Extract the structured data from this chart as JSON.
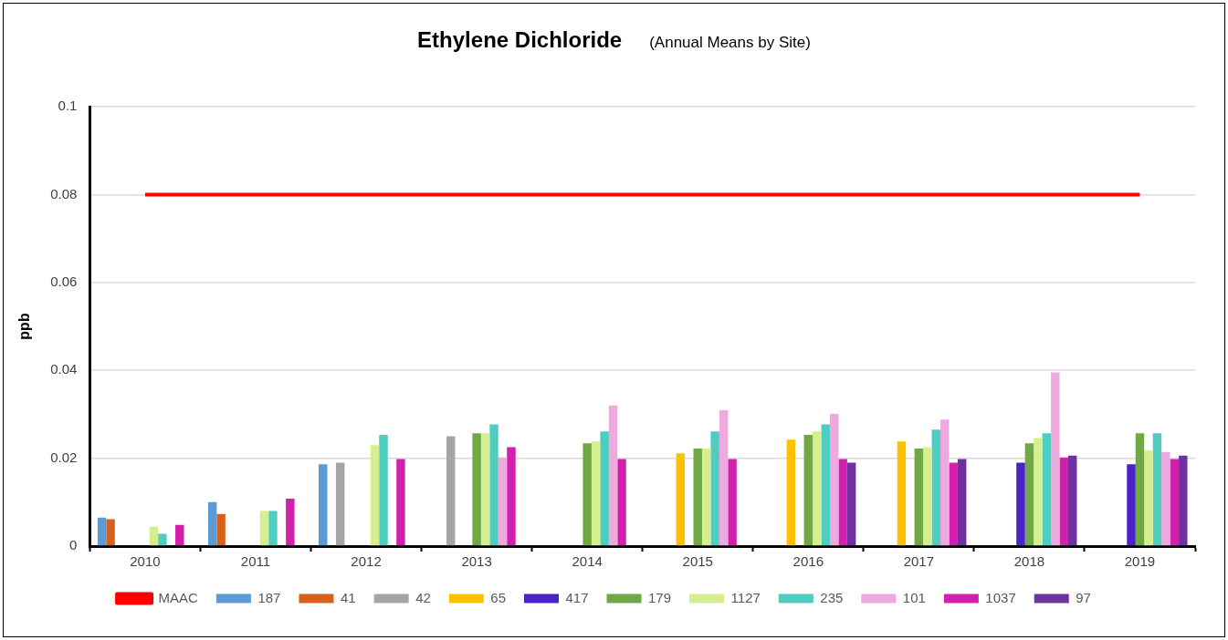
{
  "chart_data": {
    "type": "bar",
    "title": "Ethylene Dichloride",
    "subtitle": "(Annual Means by Site)",
    "ylabel": "ppb",
    "categories": [
      "2010",
      "2011",
      "2012",
      "2013",
      "2014",
      "2015",
      "2016",
      "2017",
      "2018",
      "2019"
    ],
    "series": [
      {
        "name": "187",
        "color": "#5b9bd5",
        "values": [
          0.0065,
          0.01,
          0.0186,
          null,
          null,
          null,
          null,
          null,
          null,
          null
        ]
      },
      {
        "name": "41",
        "color": "#d9601a",
        "values": [
          0.0061,
          0.0073,
          null,
          null,
          null,
          null,
          null,
          null,
          null,
          null
        ]
      },
      {
        "name": "42",
        "color": "#a5a5a5",
        "values": [
          null,
          null,
          0.019,
          0.025,
          null,
          null,
          null,
          null,
          null,
          null
        ]
      },
      {
        "name": "65",
        "color": "#ffc000",
        "values": [
          null,
          null,
          null,
          null,
          null,
          0.0211,
          0.0242,
          0.0238,
          null,
          null
        ]
      },
      {
        "name": "417",
        "color": "#4a22c8",
        "values": [
          null,
          null,
          null,
          null,
          null,
          null,
          null,
          null,
          0.019,
          0.0186
        ]
      },
      {
        "name": "179",
        "color": "#70a846",
        "values": [
          null,
          null,
          null,
          0.0257,
          0.0234,
          0.0222,
          0.0253,
          0.0222,
          0.0234,
          0.0257
        ]
      },
      {
        "name": "1127",
        "color": "#d4ee90",
        "values": [
          0.0044,
          0.008,
          0.023,
          0.0257,
          0.0238,
          0.0222,
          0.0261,
          0.0225,
          0.0246,
          0.0218
        ]
      },
      {
        "name": "235",
        "color": "#4ecdc0",
        "values": [
          0.0028,
          0.008,
          0.0253,
          0.0277,
          0.0261,
          0.0261,
          0.0277,
          0.0265,
          0.0257,
          0.0257
        ]
      },
      {
        "name": "101",
        "color": "#eea9de",
        "values": [
          null,
          null,
          null,
          0.0202,
          0.032,
          0.0309,
          0.0301,
          0.0288,
          0.0395,
          0.0214
        ]
      },
      {
        "name": "1037",
        "color": "#d020ac",
        "values": [
          0.0048,
          0.0108,
          0.0198,
          0.0225,
          0.0198,
          0.0198,
          0.0198,
          0.019,
          0.0202,
          0.0198
        ]
      },
      {
        "name": "97",
        "color": "#7030a0",
        "values": [
          null,
          null,
          null,
          null,
          null,
          null,
          0.019,
          0.0198,
          0.0206,
          0.0206
        ]
      },
      {
        "name": "MAAC",
        "type": "line",
        "color": "#ff0000",
        "values": [
          0.08,
          0.08,
          0.08,
          0.08,
          0.08,
          0.08,
          0.08,
          0.08,
          0.08,
          0.08
        ]
      }
    ],
    "ylim": [
      0,
      0.1
    ],
    "yticks": [
      0,
      0.02,
      0.04,
      0.06,
      0.08,
      0.1
    ],
    "grid": "y",
    "legend": "bottom",
    "marker": "none"
  }
}
